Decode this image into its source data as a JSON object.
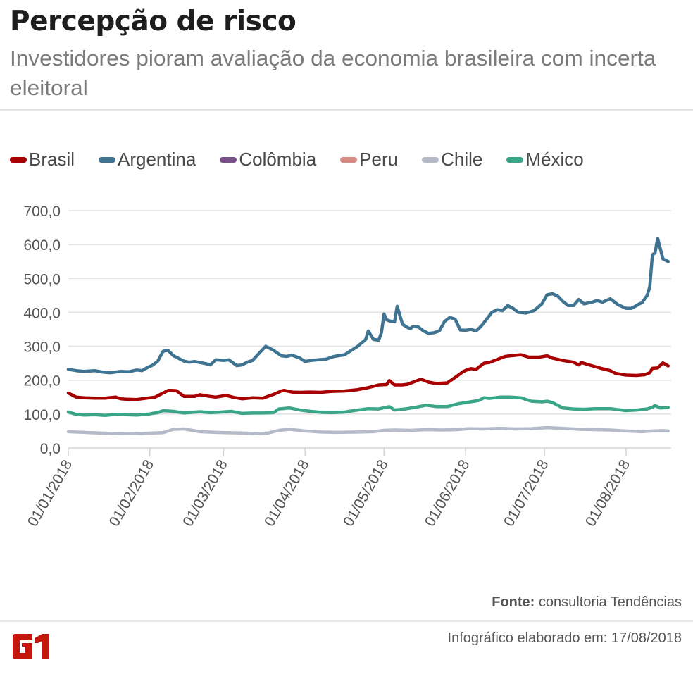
{
  "header": {
    "title": "Percepção de risco",
    "subtitle": "Investidores pioram avaliação da economia brasileira com incerta eleitoral"
  },
  "footer": {
    "source_label": "Fonte:",
    "source_value": "consultoria Tendências",
    "created_label": "Infográfico elaborado em: 17/08/2018",
    "logo": "G1"
  },
  "colors": {
    "title": "#1e1e1e",
    "subtitle": "#7b7b7b",
    "logo": "#c4170c"
  },
  "chart_data": {
    "type": "line",
    "title": "Percepção de risco",
    "subtitle": "Investidores pioram avaliação da economia brasileira com incerta eleitoral",
    "xlabel": "",
    "ylabel": "",
    "ylim": [
      0,
      700
    ],
    "yticks": [
      "0,0",
      "100,0",
      "200,0",
      "300,0",
      "400,0",
      "500,0",
      "600,0",
      "700,0"
    ],
    "ytick_values": [
      0,
      100,
      200,
      300,
      400,
      500,
      600,
      700
    ],
    "x_unit": "days since 01/01/2018",
    "xlim": [
      0,
      229
    ],
    "xticks": [
      "01/01/2018",
      "01/02/2018",
      "01/03/2018",
      "01/04/2018",
      "01/05/2018",
      "01/06/2018",
      "01/07/2018",
      "01/08/2018"
    ],
    "xtick_values": [
      0,
      31,
      59,
      90,
      120,
      151,
      181,
      212
    ],
    "grid": true,
    "legend_position": "top-left",
    "series": [
      {
        "name": "Brasil",
        "color": "#a80000",
        "x": [
          0,
          3,
          6,
          10,
          14,
          18,
          20,
          22,
          26,
          30,
          33,
          35,
          38,
          39,
          41,
          44,
          48,
          50,
          53,
          56,
          60,
          63,
          66,
          70,
          74,
          78,
          81,
          82,
          85,
          88,
          92,
          96,
          100,
          105,
          110,
          114,
          118,
          121,
          122,
          124,
          127,
          129,
          131,
          134,
          137,
          140,
          142,
          144,
          147,
          150,
          152,
          153,
          155,
          158,
          160,
          162,
          166,
          168,
          172,
          175,
          179,
          182,
          184,
          188,
          192,
          194,
          195,
          198,
          202,
          206,
          208,
          212,
          216,
          219,
          221,
          222,
          224,
          226,
          228
        ],
        "values": [
          162,
          150,
          148,
          147,
          147,
          150,
          145,
          144,
          143,
          147,
          150,
          158,
          170,
          170,
          169,
          152,
          152,
          157,
          153,
          150,
          155,
          149,
          145,
          148,
          147,
          158,
          168,
          170,
          165,
          164,
          165,
          164,
          167,
          168,
          172,
          178,
          186,
          187,
          199,
          186,
          186,
          188,
          194,
          203,
          194,
          190,
          191,
          192,
          208,
          225,
          232,
          234,
          232,
          250,
          252,
          258,
          270,
          272,
          275,
          268,
          268,
          272,
          265,
          258,
          253,
          245,
          252,
          245,
          236,
          228,
          220,
          215,
          214,
          216,
          222,
          235,
          236,
          251,
          242
        ]
      },
      {
        "name": "Argentina",
        "color": "#3e7391",
        "x": [
          0,
          3,
          6,
          10,
          13,
          16,
          20,
          23,
          26,
          28,
          30,
          32,
          34,
          36,
          37,
          38,
          40,
          42,
          44,
          46,
          48,
          50,
          52,
          54,
          56,
          59,
          61,
          64,
          66,
          68,
          70,
          72,
          75,
          78,
          81,
          83,
          85,
          88,
          90,
          92,
          95,
          98,
          101,
          105,
          110,
          113,
          114,
          116,
          118,
          119,
          120,
          121,
          122,
          124,
          125,
          127,
          129,
          130,
          131,
          133,
          135,
          137,
          139,
          141,
          143,
          145,
          147,
          149,
          151,
          153,
          155,
          157,
          159,
          161,
          163,
          165,
          167,
          169,
          171,
          174,
          177,
          180,
          182,
          184,
          186,
          188,
          190,
          192,
          194,
          196,
          199,
          201,
          203,
          206,
          209,
          212,
          214,
          216,
          217,
          218,
          220,
          221,
          222,
          223,
          224,
          226,
          228
        ],
        "values": [
          232,
          228,
          226,
          228,
          224,
          222,
          226,
          225,
          230,
          228,
          237,
          244,
          256,
          285,
          287,
          287,
          272,
          264,
          256,
          253,
          255,
          252,
          249,
          245,
          260,
          258,
          260,
          243,
          245,
          253,
          258,
          275,
          300,
          288,
          272,
          270,
          274,
          265,
          255,
          258,
          260,
          262,
          270,
          275,
          300,
          320,
          345,
          320,
          318,
          340,
          395,
          378,
          375,
          372,
          418,
          365,
          355,
          352,
          358,
          357,
          345,
          338,
          340,
          345,
          373,
          385,
          380,
          348,
          347,
          350,
          345,
          360,
          380,
          400,
          408,
          405,
          420,
          412,
          400,
          398,
          405,
          425,
          452,
          455,
          448,
          432,
          420,
          420,
          438,
          425,
          430,
          435,
          430,
          440,
          422,
          412,
          412,
          420,
          425,
          428,
          450,
          475,
          570,
          575,
          618,
          558,
          550
        ]
      },
      {
        "name": "Colômbia",
        "color": "#7a4f8a",
        "x": [],
        "values": []
      },
      {
        "name": "Peru",
        "color": "#db8a84",
        "x": [],
        "values": []
      },
      {
        "name": "Chile",
        "color": "#b4bac7",
        "x": [
          0,
          6,
          12,
          18,
          24,
          28,
          32,
          36,
          40,
          44,
          50,
          56,
          60,
          66,
          72,
          76,
          80,
          84,
          90,
          96,
          102,
          110,
          116,
          120,
          124,
          130,
          136,
          142,
          148,
          152,
          158,
          164,
          170,
          176,
          182,
          188,
          194,
          200,
          206,
          212,
          218,
          222,
          226,
          228
        ],
        "values": [
          48,
          46,
          44,
          42,
          43,
          42,
          44,
          45,
          55,
          56,
          48,
          46,
          45,
          44,
          42,
          44,
          52,
          55,
          50,
          47,
          46,
          47,
          48,
          52,
          53,
          52,
          54,
          53,
          54,
          57,
          56,
          58,
          56,
          57,
          60,
          58,
          55,
          54,
          53,
          50,
          48,
          50,
          51,
          50
        ]
      },
      {
        "name": "México",
        "color": "#3aa687",
        "x": [
          0,
          3,
          6,
          10,
          14,
          18,
          22,
          26,
          30,
          32,
          34,
          36,
          40,
          44,
          50,
          54,
          58,
          62,
          66,
          70,
          74,
          78,
          80,
          84,
          88,
          92,
          96,
          100,
          105,
          110,
          114,
          118,
          122,
          124,
          128,
          132,
          136,
          140,
          144,
          148,
          152,
          156,
          158,
          160,
          164,
          168,
          172,
          176,
          180,
          182,
          184,
          188,
          192,
          196,
          200,
          206,
          212,
          216,
          220,
          222,
          223,
          225,
          228
        ],
        "values": [
          106,
          99,
          97,
          98,
          96,
          99,
          98,
          97,
          99,
          102,
          104,
          110,
          108,
          103,
          107,
          104,
          106,
          108,
          102,
          103,
          103,
          104,
          115,
          118,
          112,
          108,
          105,
          104,
          106,
          112,
          116,
          115,
          122,
          112,
          115,
          120,
          126,
          122,
          122,
          130,
          135,
          140,
          148,
          146,
          150,
          150,
          148,
          138,
          136,
          138,
          134,
          118,
          115,
          114,
          116,
          116,
          110,
          112,
          115,
          120,
          125,
          118,
          120
        ]
      }
    ]
  }
}
